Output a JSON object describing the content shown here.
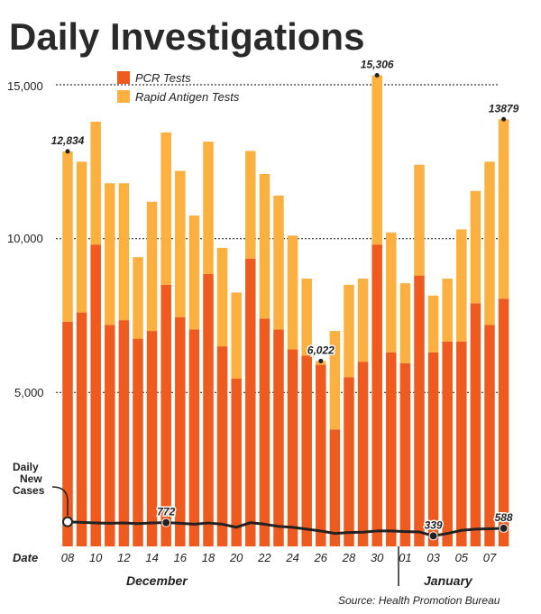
{
  "chart_data": {
    "type": "bar",
    "stacked": true,
    "title": "Daily Investigations",
    "series": [
      {
        "name": "PCR Tests",
        "color": "#ef5a1e",
        "values": [
          7300,
          7600,
          9800,
          7200,
          7350,
          6750,
          7000,
          8500,
          7450,
          7050,
          8850,
          6500,
          5450,
          9350,
          7400,
          7050,
          6400,
          6200,
          5900,
          3800,
          5500,
          6000,
          9800,
          6300,
          5950,
          8800,
          6300,
          6650,
          6650,
          7900,
          7200,
          8050
        ]
      },
      {
        "name": "Rapid Antigen Tests",
        "color": "#fbb040",
        "values": [
          5534,
          4900,
          4000,
          4600,
          4450,
          2650,
          4200,
          4950,
          4750,
          3700,
          4300,
          3200,
          2800,
          3500,
          4700,
          4350,
          3700,
          2500,
          122,
          3200,
          3000,
          2700,
          5506,
          3900,
          2600,
          3600,
          1850,
          2050,
          3650,
          3650,
          5300,
          5829
        ]
      }
    ],
    "daily_new_cases": {
      "label_lines": [
        "Daily",
        "New",
        "Cases"
      ],
      "values": [
        800,
        780,
        760,
        750,
        760,
        740,
        760,
        772,
        750,
        720,
        760,
        720,
        620,
        770,
        720,
        650,
        620,
        560,
        500,
        420,
        450,
        460,
        500,
        500,
        480,
        470,
        339,
        420,
        520,
        560,
        570,
        588
      ]
    },
    "annotations": [
      {
        "index": 0,
        "series": "total",
        "label": "12,834"
      },
      {
        "index": 18,
        "series": "total",
        "label": "6,022"
      },
      {
        "index": 22,
        "series": "total",
        "label": "15,306"
      },
      {
        "index": 31,
        "series": "total",
        "label": "13879"
      },
      {
        "index": 7,
        "series": "cases",
        "label": "772"
      },
      {
        "index": 26,
        "series": "cases",
        "label": "339"
      },
      {
        "index": 31,
        "series": "cases",
        "label": "588"
      }
    ],
    "y_ticks": [
      "15,000",
      "10,000",
      "5,000"
    ],
    "y_tick_values": [
      15000,
      10000,
      5000
    ],
    "ylim": [
      0,
      15000
    ],
    "x_axis_label": "Date",
    "x_tick_labels": [
      "08",
      "10",
      "12",
      "14",
      "16",
      "18",
      "20",
      "22",
      "24",
      "26",
      "28",
      "30",
      "01",
      "03",
      "05",
      "07"
    ],
    "x_tick_indices": [
      0,
      2,
      4,
      6,
      8,
      10,
      12,
      14,
      16,
      18,
      20,
      22,
      24,
      26,
      28,
      30
    ],
    "month_labels": [
      "December",
      "January"
    ],
    "source": "Source: Health Promotion Bureau",
    "grid": true,
    "legend_position": "top-left"
  }
}
